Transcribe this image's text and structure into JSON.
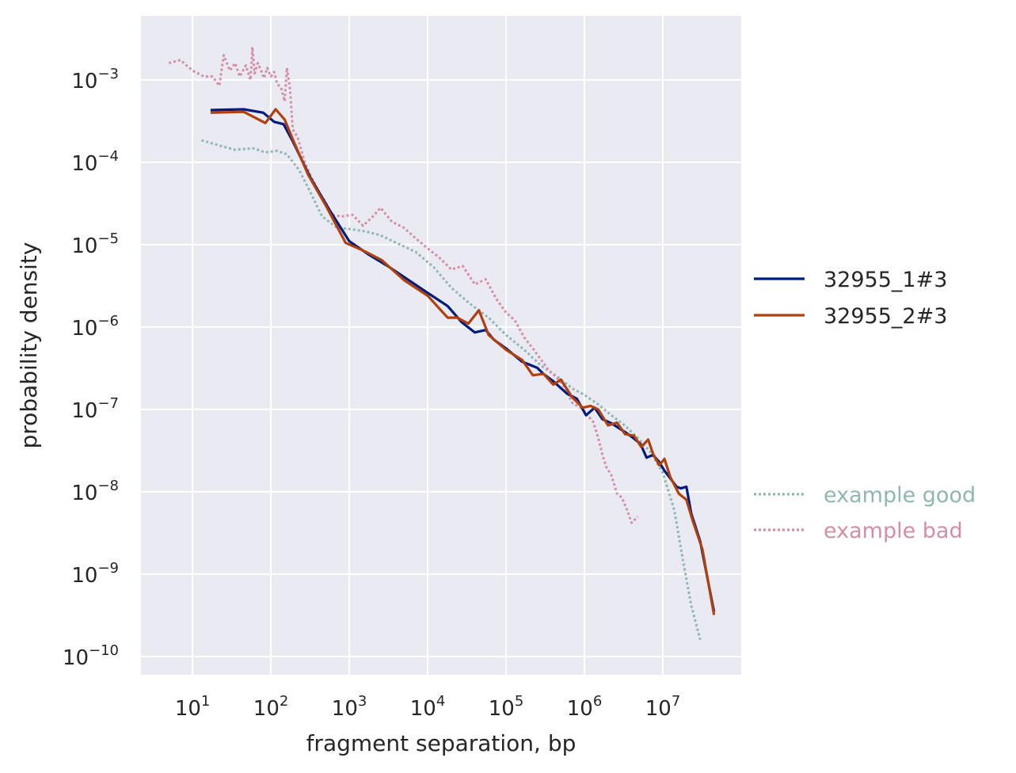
{
  "chart_data": {
    "type": "line",
    "title": "",
    "xlabel": "fragment separation, bp",
    "ylabel": "probability density",
    "xscale": "log",
    "yscale": "log",
    "xlim": [
      2.2,
      100000000
    ],
    "ylim": [
      6e-11,
      0.006
    ],
    "grid": true,
    "background": "#eaeaf2",
    "x_ticks": [
      {
        "base": "10",
        "exp": "1",
        "value": 10
      },
      {
        "base": "10",
        "exp": "2",
        "value": 100
      },
      {
        "base": "10",
        "exp": "3",
        "value": 1000
      },
      {
        "base": "10",
        "exp": "4",
        "value": 10000
      },
      {
        "base": "10",
        "exp": "5",
        "value": 100000
      },
      {
        "base": "10",
        "exp": "6",
        "value": 1000000
      },
      {
        "base": "10",
        "exp": "7",
        "value": 10000000
      }
    ],
    "y_ticks": [
      {
        "base": "10",
        "exp": "−3",
        "value": 0.001
      },
      {
        "base": "10",
        "exp": "−4",
        "value": 0.0001
      },
      {
        "base": "10",
        "exp": "−5",
        "value": 1e-05
      },
      {
        "base": "10",
        "exp": "−6",
        "value": 1e-06
      },
      {
        "base": "10",
        "exp": "−7",
        "value": 1e-07
      },
      {
        "base": "10",
        "exp": "−8",
        "value": 1e-08
      },
      {
        "base": "10",
        "exp": "−9",
        "value": 1e-09
      },
      {
        "base": "10",
        "exp": "−10",
        "value": 1e-10
      }
    ],
    "legend_position": "right",
    "legend": [
      {
        "name": "32955_1#3",
        "color": "#001c7f",
        "style": "solid"
      },
      {
        "name": "32955_2#3",
        "color": "#b1400d",
        "style": "solid"
      },
      {
        "name": "example good",
        "color": "#8fb7b0",
        "style": "dotted"
      },
      {
        "name": "example bad",
        "color": "#d48ea8",
        "style": "dotted"
      }
    ],
    "series": [
      {
        "name": "32955_1#3",
        "color": "#001c7f",
        "style": "solid",
        "points": [
          [
            17,
            0.00043
          ],
          [
            45,
            0.00044
          ],
          [
            80,
            0.0004
          ],
          [
            110,
            0.00031
          ],
          [
            145,
            0.00029
          ],
          [
            190,
            0.00018
          ],
          [
            320,
            6.5e-05
          ],
          [
            550,
            2.7e-05
          ],
          [
            1000,
            1.1e-05
          ],
          [
            1800,
            7.5e-06
          ],
          [
            3000,
            5.6e-06
          ],
          [
            5500,
            3.8e-06
          ],
          [
            10000,
            2.6e-06
          ],
          [
            18000,
            1.8e-06
          ],
          [
            27000,
            1.15e-06
          ],
          [
            40000,
            8.6e-07
          ],
          [
            55000,
            9.2e-07
          ],
          [
            70000,
            7e-07
          ],
          [
            100000,
            5.5e-07
          ],
          [
            160000,
            3.8e-07
          ],
          [
            250000,
            3.2e-07
          ],
          [
            300000,
            2.7e-07
          ],
          [
            400000,
            2.2e-07
          ],
          [
            600000,
            1.55e-07
          ],
          [
            800000,
            1.35e-07
          ],
          [
            1050000,
            8.5e-08
          ],
          [
            1350000,
            1.05e-07
          ],
          [
            1700000,
            7.6e-08
          ],
          [
            2200000,
            6.8e-08
          ],
          [
            2700000,
            6e-08
          ],
          [
            3300000,
            5.3e-08
          ],
          [
            4200000,
            4.5e-08
          ],
          [
            5200000,
            3.8e-08
          ],
          [
            6200000,
            2.6e-08
          ],
          [
            7500000,
            2.8e-08
          ],
          [
            9000000,
            2.3e-08
          ],
          [
            10500000,
            1.8e-08
          ],
          [
            12500000,
            1.45e-08
          ],
          [
            15000000,
            1.15e-08
          ],
          [
            17000000,
            1.1e-08
          ],
          [
            20000000,
            1.15e-08
          ],
          [
            23000000,
            5.5e-09
          ],
          [
            30000000,
            2.5e-09
          ],
          [
            45000000,
            3.5e-10
          ]
        ]
      },
      {
        "name": "32955_2#3",
        "color": "#b1400d",
        "style": "solid",
        "points": [
          [
            17,
            0.0004
          ],
          [
            45,
            0.00041
          ],
          [
            85,
            0.0003
          ],
          [
            115,
            0.00044
          ],
          [
            150,
            0.00033
          ],
          [
            190,
            0.00019
          ],
          [
            300,
            7e-05
          ],
          [
            500,
            3e-05
          ],
          [
            900,
            1.05e-05
          ],
          [
            1500,
            8.5e-06
          ],
          [
            2600,
            6.5e-06
          ],
          [
            5000,
            3.7e-06
          ],
          [
            10000,
            2.4e-06
          ],
          [
            18000,
            1.3e-06
          ],
          [
            24000,
            1.3e-06
          ],
          [
            33000,
            1.1e-06
          ],
          [
            45000,
            1.6e-06
          ],
          [
            60000,
            8e-07
          ],
          [
            100000,
            5.3e-07
          ],
          [
            160000,
            4e-07
          ],
          [
            220000,
            2.6e-07
          ],
          [
            300000,
            2.7e-07
          ],
          [
            400000,
            2e-07
          ],
          [
            500000,
            2.3e-07
          ],
          [
            700000,
            1.4e-07
          ],
          [
            950000,
            1.05e-07
          ],
          [
            1200000,
            1.1e-07
          ],
          [
            1500000,
            1e-07
          ],
          [
            2000000,
            6.4e-08
          ],
          [
            2600000,
            6.9e-08
          ],
          [
            3300000,
            5e-08
          ],
          [
            4300000,
            4.8e-08
          ],
          [
            5300000,
            3.5e-08
          ],
          [
            6500000,
            4.3e-08
          ],
          [
            7500000,
            2.9e-08
          ],
          [
            9000000,
            2.1e-08
          ],
          [
            10500000,
            2.5e-08
          ],
          [
            12500000,
            1.5e-08
          ],
          [
            16000000,
            9.5e-09
          ],
          [
            20000000,
            8e-09
          ],
          [
            24000000,
            4.5e-09
          ],
          [
            32000000,
            2e-09
          ],
          [
            45000000,
            3.2e-10
          ]
        ]
      },
      {
        "name": "example good",
        "color": "#8fb7b0",
        "style": "dotted",
        "points": [
          [
            13,
            0.000185
          ],
          [
            22,
            0.00016
          ],
          [
            35,
            0.000142
          ],
          [
            60,
            0.000148
          ],
          [
            85,
            0.000132
          ],
          [
            120,
            0.000138
          ],
          [
            160,
            0.000125
          ],
          [
            230,
            8e-05
          ],
          [
            320,
            4.3e-05
          ],
          [
            450,
            2.2e-05
          ],
          [
            700,
            1.6e-05
          ],
          [
            1000,
            1.55e-05
          ],
          [
            1600,
            1.45e-05
          ],
          [
            2500,
            1.3e-05
          ],
          [
            4000,
            1.05e-05
          ],
          [
            7000,
            8.2e-06
          ],
          [
            12000,
            5.3e-06
          ],
          [
            20000,
            3e-06
          ],
          [
            35000,
            1.9e-06
          ],
          [
            60000,
            1.3e-06
          ],
          [
            100000,
            8e-07
          ],
          [
            170000,
            5.3e-07
          ],
          [
            280000,
            3.4e-07
          ],
          [
            450000,
            2.5e-07
          ],
          [
            700000,
            1.8e-07
          ],
          [
            1000000,
            1.5e-07
          ],
          [
            1500000,
            1.15e-07
          ],
          [
            2200000,
            8.5e-08
          ],
          [
            3200000,
            6.5e-08
          ],
          [
            4800000,
            4.5e-08
          ],
          [
            7000000,
            3e-08
          ],
          [
            10000000,
            1.7e-08
          ],
          [
            14000000,
            6e-09
          ],
          [
            18000000,
            1.5e-09
          ],
          [
            23000000,
            4.2e-10
          ],
          [
            30000000,
            1.6e-10
          ]
        ]
      },
      {
        "name": "example bad",
        "color": "#d48ea8",
        "style": "dotted",
        "points": [
          [
            5,
            0.0016
          ],
          [
            7,
            0.00175
          ],
          [
            10,
            0.0013
          ],
          [
            14,
            0.0011
          ],
          [
            18,
            0.0011
          ],
          [
            22,
            0.00085
          ],
          [
            25,
            0.002
          ],
          [
            30,
            0.0013
          ],
          [
            35,
            0.0016
          ],
          [
            40,
            0.0011
          ],
          [
            48,
            0.0015
          ],
          [
            55,
            0.001
          ],
          [
            58,
            0.0025
          ],
          [
            62,
            0.0012
          ],
          [
            68,
            0.0016
          ],
          [
            75,
            0.0013
          ],
          [
            82,
            0.00105
          ],
          [
            90,
            0.0014
          ],
          [
            100,
            0.0011
          ],
          [
            110,
            0.00125
          ],
          [
            120,
            0.0009
          ],
          [
            135,
            0.0008
          ],
          [
            150,
            0.00055
          ],
          [
            160,
            0.0014
          ],
          [
            175,
            0.0008
          ],
          [
            190,
            0.00025
          ],
          [
            220,
            0.0002
          ],
          [
            270,
            0.0001
          ],
          [
            330,
            6.5e-05
          ],
          [
            420,
            4.2e-05
          ],
          [
            500,
            3.3e-05
          ],
          [
            600,
            2.3e-05
          ],
          [
            800,
            2.2e-05
          ],
          [
            1100,
            2.3e-05
          ],
          [
            1500,
            1.7e-05
          ],
          [
            2000,
            2.2e-05
          ],
          [
            2500,
            2.8e-05
          ],
          [
            3500,
            1.9e-05
          ],
          [
            5000,
            1.6e-05
          ],
          [
            7000,
            1.2e-05
          ],
          [
            10000,
            9e-06
          ],
          [
            14000,
            7e-06
          ],
          [
            20000,
            5e-06
          ],
          [
            28000,
            5.5e-06
          ],
          [
            40000,
            3.3e-06
          ],
          [
            55000,
            3.8e-06
          ],
          [
            75000,
            2.2e-06
          ],
          [
            100000,
            1.5e-06
          ],
          [
            130000,
            1.2e-06
          ],
          [
            170000,
            7.5e-07
          ],
          [
            220000,
            5.5e-07
          ],
          [
            280000,
            4e-07
          ],
          [
            350000,
            3e-07
          ],
          [
            450000,
            2.4e-07
          ],
          [
            550000,
            1.9e-07
          ],
          [
            700000,
            1.2e-07
          ],
          [
            900000,
            1.05e-07
          ],
          [
            1100000,
            8.5e-08
          ],
          [
            1300000,
            7e-08
          ],
          [
            1500000,
            4.5e-08
          ],
          [
            1700000,
            2.8e-08
          ],
          [
            1900000,
            2e-08
          ],
          [
            2200000,
            1.6e-08
          ],
          [
            2600000,
            9.5e-09
          ],
          [
            3000000,
            8.5e-09
          ],
          [
            3500000,
            6e-09
          ],
          [
            4000000,
            4.2e-09
          ],
          [
            4800000,
            5e-09
          ]
        ]
      }
    ]
  }
}
